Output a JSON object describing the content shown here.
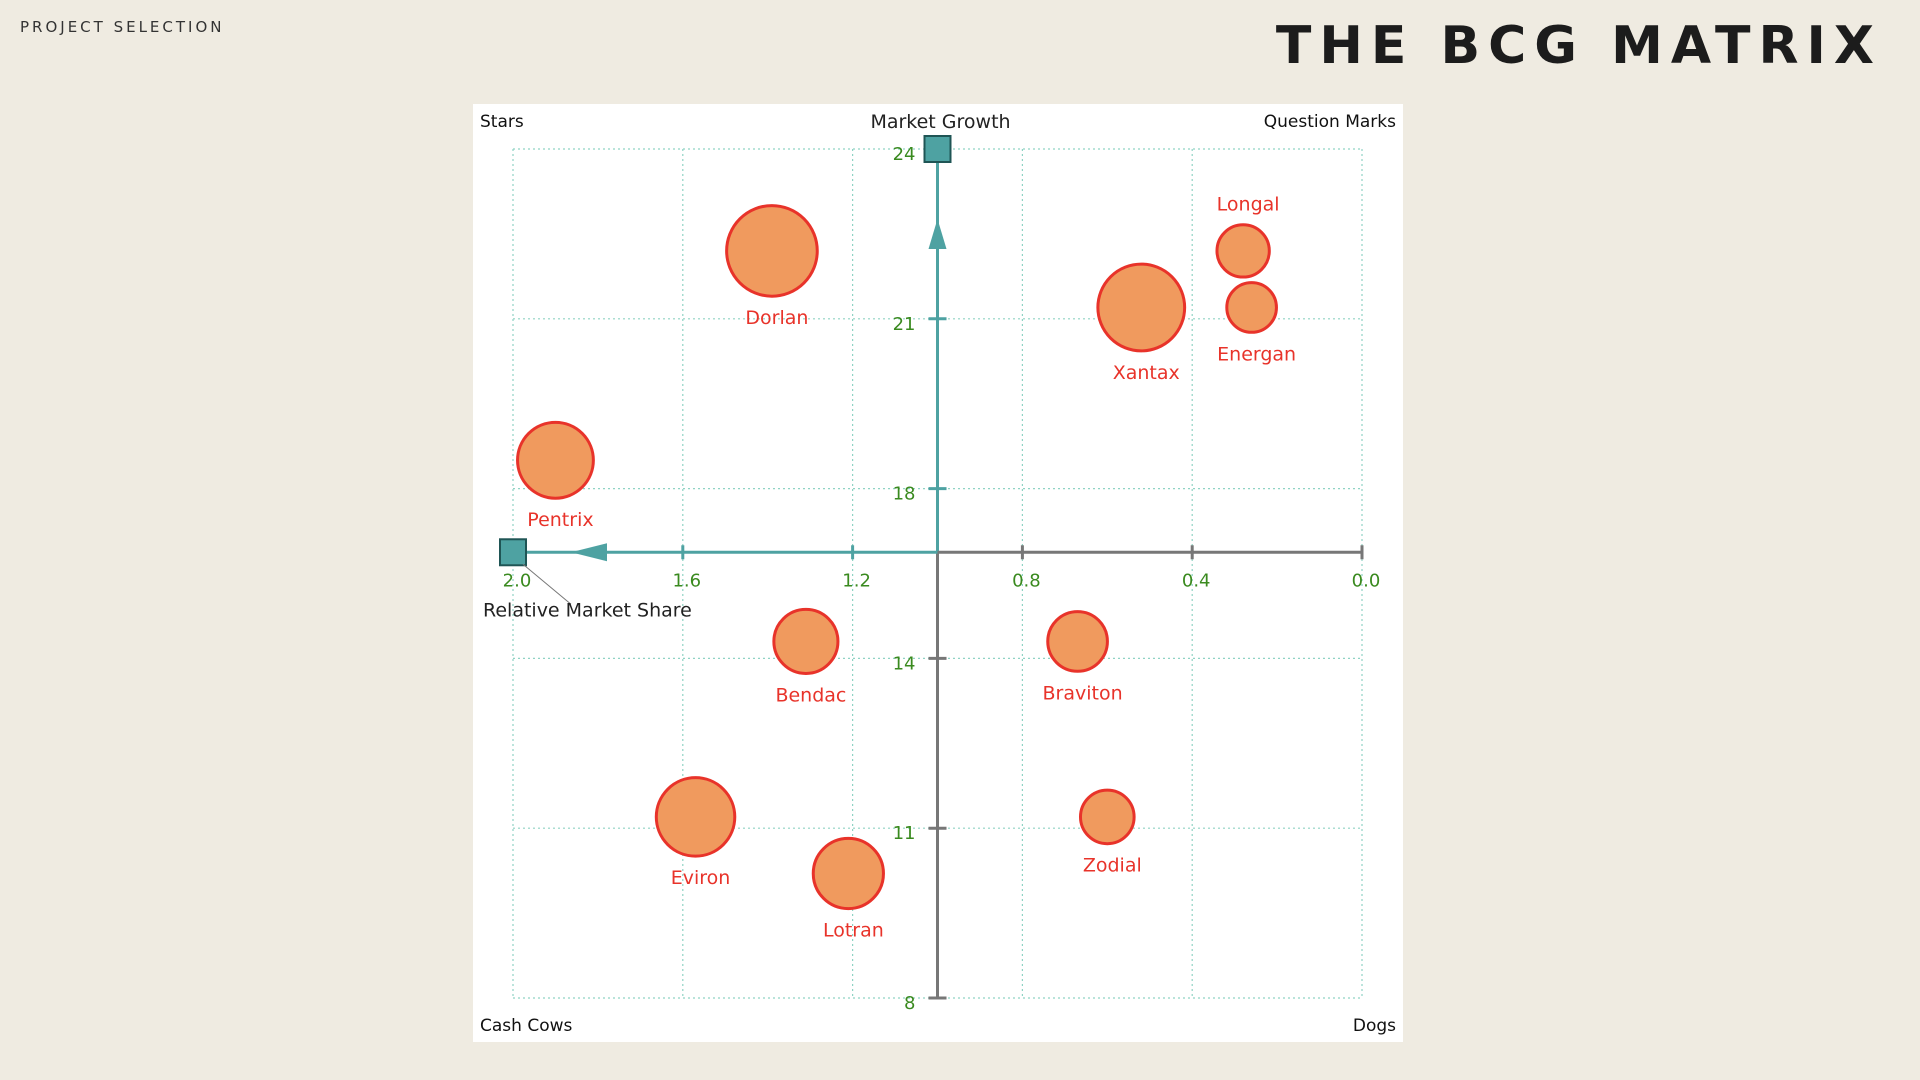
{
  "header": {
    "eyebrow": "PROJECT SELECTION",
    "title": "THE BCG MATRIX"
  },
  "chart_data": {
    "type": "scatter",
    "subtype": "bubble",
    "title": "",
    "xlabel": "Relative Market Share",
    "ylabel": "Market Growth",
    "xlim": [
      0.0,
      2.0
    ],
    "x_reversed": true,
    "x_ticks": [
      2.0,
      1.6,
      1.2,
      0.8,
      0.4,
      0.0
    ],
    "x_tick_labels": [
      "2.0",
      "1.6",
      "1.2",
      "0.8",
      "0.4",
      "0.0"
    ],
    "ylim": [
      8,
      24
    ],
    "y_ticks": [
      8,
      11,
      14,
      18,
      21,
      24
    ],
    "y_tick_labels": [
      "8",
      "11",
      "14",
      "18",
      "21",
      "24"
    ],
    "axis_crossing": {
      "x": 1.0,
      "y": 16.5
    },
    "grid": true,
    "quadrant_labels": {
      "top_left": "Stars",
      "top_right": "Question Marks",
      "bottom_left": "Cash Cows",
      "bottom_right": "Dogs"
    },
    "colors": {
      "bubble_fill": "#f09a5e",
      "bubble_stroke": "#e8332a",
      "label": "#e8332a",
      "axis_main": "#4ea2a2",
      "axis_secondary": "#777777",
      "tick_label": "#3a8a1f",
      "grid": "#8fd3c4"
    },
    "points": [
      {
        "name": "Dorlan",
        "x": 1.39,
        "y": 22.2,
        "size": 6
      },
      {
        "name": "Xantax",
        "x": 0.52,
        "y": 21.2,
        "size": 5.5
      },
      {
        "name": "Longal",
        "x": 0.28,
        "y": 22.2,
        "size": 2
      },
      {
        "name": "Energan",
        "x": 0.26,
        "y": 21.2,
        "size": 1.8
      },
      {
        "name": "Pentrix",
        "x": 1.9,
        "y": 18.5,
        "size": 4.2
      },
      {
        "name": "Bendac",
        "x": 1.31,
        "y": 14.4,
        "size": 3
      },
      {
        "name": "Braviton",
        "x": 0.67,
        "y": 14.4,
        "size": 2.6
      },
      {
        "name": "Eviron",
        "x": 1.57,
        "y": 11.2,
        "size": 4.5
      },
      {
        "name": "Lotran",
        "x": 1.21,
        "y": 10.2,
        "size": 3.6
      },
      {
        "name": "Zodial",
        "x": 0.6,
        "y": 11.2,
        "size": 2.1
      }
    ]
  }
}
